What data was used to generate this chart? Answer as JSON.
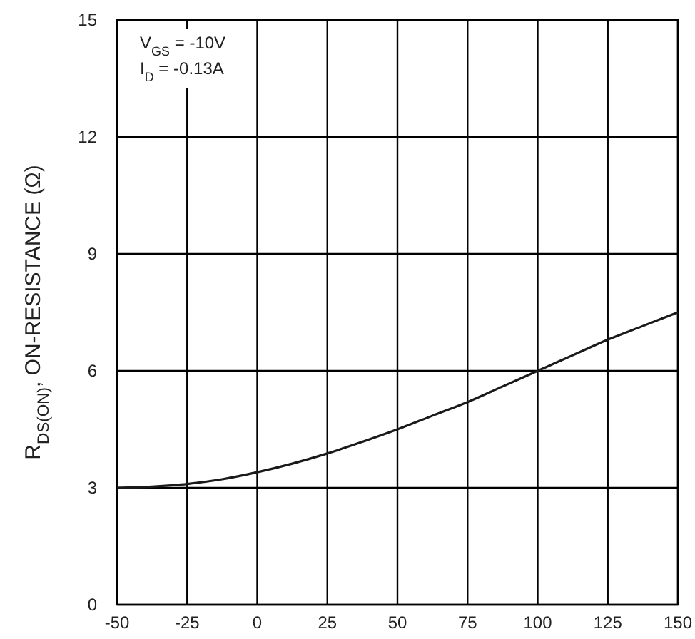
{
  "chart_data": {
    "type": "line",
    "ylabel": "R$_{DS(ON)}$, ON-RESISTANCE (Ω)",
    "annotations": [
      "V$_{GS}$ = -10V",
      "I$_{D}$ = -0.13A"
    ],
    "x": [
      -50,
      -37.5,
      -25,
      -12.5,
      0,
      12.5,
      25,
      37.5,
      50,
      62.5,
      75,
      87.5,
      100,
      112.5,
      125,
      137.5,
      150
    ],
    "series": [
      {
        "color": "#1a1a1a",
        "values": [
          3.0,
          3.03,
          3.1,
          3.22,
          3.4,
          3.62,
          3.88,
          4.18,
          4.5,
          4.85,
          5.2,
          5.6,
          6.0,
          6.4,
          6.8,
          7.15,
          7.5
        ]
      }
    ],
    "xlim": [
      -50,
      150
    ],
    "xticks": [
      -50,
      -25,
      0,
      25,
      50,
      75,
      100,
      125,
      150
    ],
    "ylim": [
      0,
      15
    ],
    "yticks": [
      0,
      3,
      6,
      9,
      12,
      15
    ],
    "grid": true,
    "marker": "none",
    "line_style": "solid"
  }
}
